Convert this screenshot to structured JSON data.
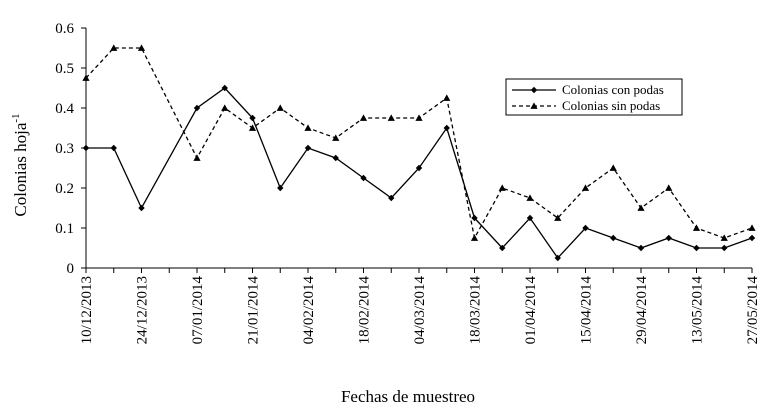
{
  "chart_data": {
    "type": "line",
    "title": "",
    "xlabel": "Fechas de muestreo",
    "ylabel": "Colonias hoja",
    "ylabel_superscript": "-1",
    "ylim": [
      0,
      0.6
    ],
    "yticks": [
      "0",
      "0.1",
      "0.2",
      "0.3",
      "0.4",
      "0.5",
      "0.6"
    ],
    "xtick_labels": [
      "10/12/2013",
      "24/12/2013",
      "07/01/2014",
      "21/01/2014",
      "04/02/2014",
      "18/02/2014",
      "04/03/2014",
      "18/03/2014",
      "01/04/2014",
      "15/04/2014",
      "29/04/2014",
      "13/05/2014",
      "27/05/2014"
    ],
    "x": [
      "10/12/2013",
      "17/12/2013",
      "24/12/2013",
      "31/12/2013",
      "07/01/2014",
      "14/01/2014",
      "21/01/2014",
      "28/01/2014",
      "04/02/2014",
      "11/02/2014",
      "18/02/2014",
      "25/02/2014",
      "04/03/2014",
      "11/03/2014",
      "18/03/2014",
      "25/03/2014",
      "01/04/2014",
      "08/04/2014",
      "15/04/2014",
      "22/04/2014",
      "29/04/2014",
      "06/05/2014",
      "13/05/2014",
      "20/05/2014",
      "27/05/2014"
    ],
    "series": [
      {
        "name": "Colonias con podas",
        "style": "solid",
        "marker": "diamond",
        "values": [
          0.3,
          0.3,
          0.15,
          null,
          0.4,
          0.45,
          0.375,
          0.2,
          0.3,
          0.275,
          0.225,
          0.175,
          0.25,
          0.35,
          0.125,
          0.05,
          0.125,
          0.025,
          0.1,
          0.075,
          0.05,
          0.075,
          0.05,
          0.05,
          0.075
        ]
      },
      {
        "name": "Colonias sin podas",
        "style": "dashed",
        "marker": "triangle",
        "values": [
          0.475,
          0.55,
          0.55,
          null,
          0.275,
          0.4,
          0.35,
          0.4,
          0.35,
          0.325,
          0.375,
          0.375,
          0.375,
          0.425,
          0.075,
          0.2,
          0.175,
          0.125,
          0.2,
          0.25,
          0.15,
          0.2,
          0.1,
          0.075,
          0.1
        ]
      }
    ],
    "legend_position": "top-right",
    "grid": false,
    "colors": {
      "line": "#000000",
      "background": "#ffffff"
    }
  }
}
